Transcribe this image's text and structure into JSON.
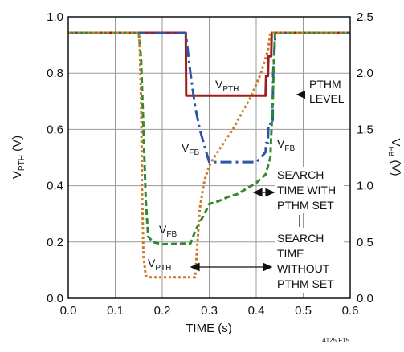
{
  "chart_data": {
    "type": "line",
    "xlabel": "TIME (s)",
    "ylabel_left": {
      "main": "V",
      "sub": "PTH",
      "unit": " (V)"
    },
    "ylabel_right": {
      "main": "V",
      "sub": "FB",
      "unit": " (V)"
    },
    "xlim": [
      0,
      0.6
    ],
    "ylim_left": [
      0,
      1.0
    ],
    "ylim_right": [
      0,
      2.5
    ],
    "grid": true,
    "x_ticks": [
      "0.0",
      "0.1",
      "0.2",
      "0.3",
      "0.4",
      "0.5",
      "0.6"
    ],
    "y_left_ticks": [
      "0.0",
      "0.2",
      "0.4",
      "0.6",
      "0.8",
      "1.0"
    ],
    "y_right_ticks": [
      "0.0",
      "0.5",
      "1.0",
      "1.5",
      "2.0",
      "2.5"
    ],
    "series": [
      {
        "color": "#a01d1d",
        "dash": "none",
        "axis": "left",
        "x": [
          0,
          0.25,
          0.251,
          0.28,
          0.281,
          0.42,
          0.421,
          0.425,
          0.426,
          0.432,
          0.433,
          0.6
        ],
        "y": [
          0.943,
          0.943,
          0.72,
          0.72,
          0.72,
          0.72,
          0.79,
          0.79,
          0.86,
          0.86,
          0.943,
          0.943
        ]
      },
      {
        "color": "#2c55a8",
        "dash": "14 5 3 5",
        "axis": "right",
        "x": [
          0,
          0.25,
          0.26,
          0.27,
          0.28,
          0.29,
          0.3,
          0.35,
          0.38,
          0.4,
          0.41,
          0.42,
          0.421,
          0.425,
          0.426,
          0.43,
          0.431,
          0.435,
          0.436,
          0.44,
          0.445,
          0.6
        ],
        "y": [
          2.355,
          2.355,
          2.0,
          1.7,
          1.5,
          1.35,
          1.21,
          1.21,
          1.21,
          1.21,
          1.25,
          1.3,
          1.38,
          1.38,
          1.55,
          1.55,
          1.58,
          1.58,
          2.0,
          2.3,
          2.355,
          2.355
        ]
      },
      {
        "color": "#2e8b2e",
        "dash": "7 4",
        "axis": "left",
        "x": [
          0,
          0.15,
          0.155,
          0.16,
          0.165,
          0.17,
          0.18,
          0.2,
          0.26,
          0.265,
          0.27,
          0.28,
          0.29,
          0.3,
          0.32,
          0.34,
          0.36,
          0.38,
          0.4,
          0.42,
          0.43,
          0.435,
          0.44,
          0.6
        ],
        "y": [
          0.943,
          0.943,
          0.85,
          0.6,
          0.35,
          0.22,
          0.2,
          0.192,
          0.195,
          0.215,
          0.24,
          0.27,
          0.3,
          0.335,
          0.345,
          0.36,
          0.37,
          0.39,
          0.41,
          0.44,
          0.5,
          0.7,
          0.943,
          0.943
        ]
      },
      {
        "color": "#c97a28",
        "dash": "3 3",
        "axis": "left",
        "x": [
          0,
          0.15,
          0.152,
          0.155,
          0.157,
          0.16,
          0.165,
          0.17,
          0.27,
          0.275,
          0.28,
          0.29,
          0.3,
          0.31,
          0.33,
          0.35,
          0.37,
          0.39,
          0.41,
          0.425,
          0.43,
          0.6
        ],
        "y": [
          0.943,
          0.943,
          0.9,
          0.7,
          0.4,
          0.15,
          0.08,
          0.075,
          0.075,
          0.2,
          0.32,
          0.42,
          0.47,
          0.5,
          0.55,
          0.6,
          0.66,
          0.72,
          0.8,
          0.88,
          0.943,
          0.943
        ]
      }
    ],
    "annotations": [
      {
        "main": "V",
        "sub": "PTH"
      },
      {
        "main": "V",
        "sub": "FB"
      },
      {
        "main": "V",
        "sub": "FB"
      },
      {
        "main": "V",
        "sub": "FB"
      },
      {
        "main": "V",
        "sub": "PTH"
      },
      {
        "lines": [
          "PTHM",
          "LEVEL"
        ]
      },
      {
        "lines": [
          "SEARCH",
          "TIME WITH",
          "PTHM SET"
        ]
      },
      {
        "lines": [
          "SEARCH",
          "TIME",
          "WITHOUT",
          "PTHM SET"
        ]
      }
    ],
    "figure_id": "4125 F15"
  }
}
